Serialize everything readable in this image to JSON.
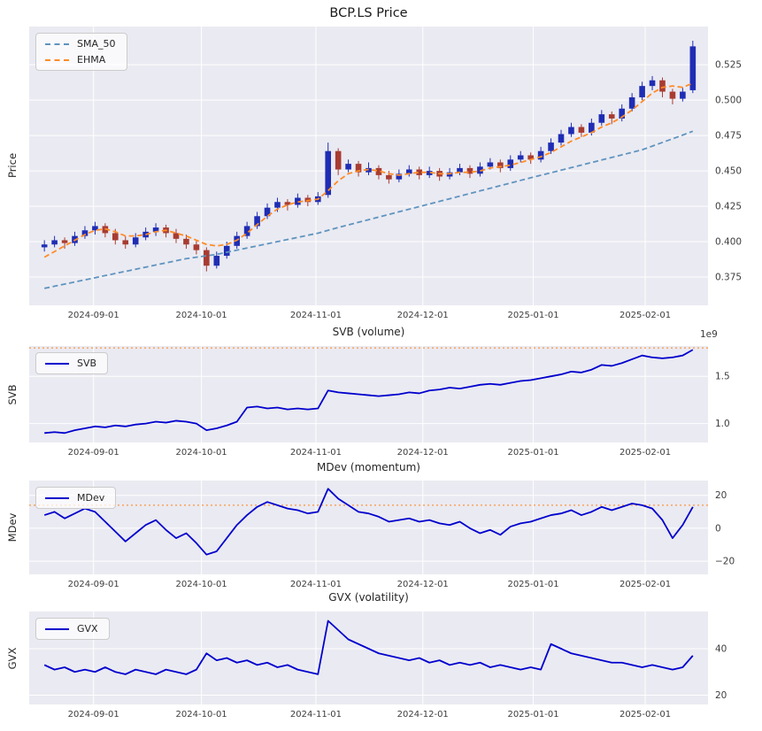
{
  "figure": {
    "title": "BCP.LS Price",
    "background": "#ffffff",
    "plot_background": "#eaeaf2",
    "grid_color": "#ffffff",
    "tick_color": "#3d3d3d"
  },
  "x_axis": {
    "tick_labels": [
      "2024-09-01",
      "2024-10-01",
      "2024-11-01",
      "2024-12-01",
      "2025-01-01",
      "2025-02-01"
    ],
    "tick_positions": [
      4.85,
      15.5,
      26.8,
      37.35,
      48.25,
      59.3
    ],
    "xlim": [
      -1.5,
      65.5
    ]
  },
  "chart_data": [
    {
      "type": "candlestick",
      "title": "BCP.LS Price",
      "ylabel": "Price",
      "ylim": [
        0.355,
        0.552
      ],
      "yticks": [
        0.375,
        0.4,
        0.425,
        0.45,
        0.475,
        0.5,
        0.525
      ],
      "ytick_labels": [
        "0.375",
        "0.400",
        "0.425",
        "0.450",
        "0.475",
        "0.500",
        "0.525"
      ],
      "up_color": "#1f2db4",
      "down_color": "#a83c32",
      "legend": [
        {
          "label": "SMA_50",
          "color": "#5f94bf",
          "dash": "dashed"
        },
        {
          "label": "EHMA",
          "color": "#ff8c26",
          "dash": "dashed"
        }
      ],
      "ohlc": [
        [
          0.396,
          0.401,
          0.393,
          0.398
        ],
        [
          0.398,
          0.404,
          0.396,
          0.401
        ],
        [
          0.401,
          0.403,
          0.395,
          0.399
        ],
        [
          0.399,
          0.407,
          0.397,
          0.404
        ],
        [
          0.404,
          0.411,
          0.402,
          0.408
        ],
        [
          0.408,
          0.414,
          0.405,
          0.411
        ],
        [
          0.411,
          0.413,
          0.403,
          0.406
        ],
        [
          0.406,
          0.409,
          0.398,
          0.401
        ],
        [
          0.401,
          0.404,
          0.395,
          0.398
        ],
        [
          0.398,
          0.406,
          0.396,
          0.403
        ],
        [
          0.403,
          0.41,
          0.401,
          0.407
        ],
        [
          0.407,
          0.413,
          0.404,
          0.41
        ],
        [
          0.41,
          0.412,
          0.403,
          0.406
        ],
        [
          0.406,
          0.409,
          0.399,
          0.402
        ],
        [
          0.402,
          0.405,
          0.395,
          0.398
        ],
        [
          0.398,
          0.401,
          0.391,
          0.394
        ],
        [
          0.394,
          0.396,
          0.379,
          0.383
        ],
        [
          0.383,
          0.393,
          0.381,
          0.39
        ],
        [
          0.39,
          0.4,
          0.388,
          0.397
        ],
        [
          0.397,
          0.407,
          0.395,
          0.404
        ],
        [
          0.404,
          0.414,
          0.402,
          0.411
        ],
        [
          0.411,
          0.421,
          0.409,
          0.418
        ],
        [
          0.418,
          0.427,
          0.416,
          0.424
        ],
        [
          0.424,
          0.431,
          0.421,
          0.428
        ],
        [
          0.428,
          0.43,
          0.422,
          0.426
        ],
        [
          0.426,
          0.434,
          0.424,
          0.431
        ],
        [
          0.431,
          0.433,
          0.425,
          0.428
        ],
        [
          0.428,
          0.435,
          0.426,
          0.432
        ],
        [
          0.433,
          0.47,
          0.431,
          0.464
        ],
        [
          0.464,
          0.466,
          0.447,
          0.451
        ],
        [
          0.451,
          0.458,
          0.449,
          0.455
        ],
        [
          0.455,
          0.457,
          0.446,
          0.449
        ],
        [
          0.449,
          0.456,
          0.447,
          0.452
        ],
        [
          0.452,
          0.454,
          0.444,
          0.447
        ],
        [
          0.447,
          0.45,
          0.441,
          0.444
        ],
        [
          0.444,
          0.451,
          0.442,
          0.448
        ],
        [
          0.448,
          0.454,
          0.446,
          0.451
        ],
        [
          0.451,
          0.453,
          0.444,
          0.447
        ],
        [
          0.447,
          0.453,
          0.445,
          0.45
        ],
        [
          0.45,
          0.452,
          0.443,
          0.446
        ],
        [
          0.446,
          0.452,
          0.444,
          0.449
        ],
        [
          0.449,
          0.455,
          0.447,
          0.452
        ],
        [
          0.452,
          0.454,
          0.445,
          0.448
        ],
        [
          0.448,
          0.456,
          0.446,
          0.453
        ],
        [
          0.453,
          0.459,
          0.451,
          0.456
        ],
        [
          0.456,
          0.458,
          0.449,
          0.452
        ],
        [
          0.452,
          0.461,
          0.45,
          0.458
        ],
        [
          0.458,
          0.464,
          0.456,
          0.461
        ],
        [
          0.461,
          0.463,
          0.455,
          0.458
        ],
        [
          0.458,
          0.467,
          0.456,
          0.464
        ],
        [
          0.464,
          0.473,
          0.462,
          0.47
        ],
        [
          0.47,
          0.479,
          0.468,
          0.476
        ],
        [
          0.476,
          0.484,
          0.474,
          0.481
        ],
        [
          0.481,
          0.483,
          0.474,
          0.477
        ],
        [
          0.477,
          0.487,
          0.475,
          0.484
        ],
        [
          0.484,
          0.493,
          0.482,
          0.49
        ],
        [
          0.49,
          0.492,
          0.483,
          0.487
        ],
        [
          0.487,
          0.497,
          0.485,
          0.494
        ],
        [
          0.494,
          0.505,
          0.492,
          0.502
        ],
        [
          0.502,
          0.513,
          0.5,
          0.51
        ],
        [
          0.51,
          0.517,
          0.507,
          0.514
        ],
        [
          0.514,
          0.516,
          0.502,
          0.506
        ],
        [
          0.506,
          0.508,
          0.497,
          0.501
        ],
        [
          0.501,
          0.509,
          0.499,
          0.506
        ],
        [
          0.507,
          0.542,
          0.505,
          0.538
        ]
      ],
      "overlays": [
        {
          "name": "SMA_50",
          "color": "#5f94bf",
          "values": [
            0.367,
            0.3685,
            0.37,
            0.3715,
            0.373,
            0.3745,
            0.376,
            0.3775,
            0.379,
            0.3805,
            0.382,
            0.3835,
            0.385,
            0.3865,
            0.388,
            0.389,
            0.39,
            0.391,
            0.3925,
            0.394,
            0.3955,
            0.397,
            0.3985,
            0.4,
            0.4015,
            0.403,
            0.4045,
            0.406,
            0.408,
            0.41,
            0.4118,
            0.4137,
            0.4155,
            0.4174,
            0.4192,
            0.4211,
            0.4229,
            0.4248,
            0.4266,
            0.4285,
            0.4303,
            0.4322,
            0.434,
            0.4359,
            0.4377,
            0.4396,
            0.4414,
            0.4433,
            0.4451,
            0.4469,
            0.4487,
            0.4505,
            0.4523,
            0.4541,
            0.4559,
            0.4577,
            0.4595,
            0.4613,
            0.4631,
            0.4649,
            0.4675,
            0.4701,
            0.4727,
            0.4753,
            0.478
          ]
        },
        {
          "name": "EHMA",
          "color": "#ff8c26",
          "values": [
            0.389,
            0.393,
            0.397,
            0.401,
            0.405,
            0.408,
            0.409,
            0.407,
            0.404,
            0.404,
            0.405,
            0.407,
            0.408,
            0.406,
            0.404,
            0.401,
            0.398,
            0.397,
            0.398,
            0.401,
            0.406,
            0.412,
            0.418,
            0.423,
            0.426,
            0.428,
            0.429,
            0.43,
            0.436,
            0.443,
            0.448,
            0.45,
            0.451,
            0.45,
            0.448,
            0.447,
            0.448,
            0.449,
            0.449,
            0.448,
            0.448,
            0.449,
            0.449,
            0.45,
            0.452,
            0.453,
            0.454,
            0.456,
            0.458,
            0.46,
            0.463,
            0.467,
            0.471,
            0.474,
            0.477,
            0.481,
            0.484,
            0.488,
            0.493,
            0.499,
            0.505,
            0.509,
            0.51,
            0.509,
            0.512
          ]
        }
      ]
    },
    {
      "type": "line",
      "title": "SVB (volume)",
      "ylabel": "SVB",
      "offset_label": "1e9",
      "ylim": [
        0.8,
        1.82
      ],
      "yticks": [
        1.0,
        1.5
      ],
      "ytick_labels": [
        "1.0",
        "1.5"
      ],
      "threshold": 1.8,
      "threshold_color": "#ff8c26",
      "line_color": "#0000cd",
      "legend": [
        {
          "label": "SVB",
          "color": "#0000cd",
          "dash": "solid"
        }
      ],
      "values": [
        0.9,
        0.91,
        0.9,
        0.93,
        0.95,
        0.97,
        0.96,
        0.98,
        0.97,
        0.99,
        1.0,
        1.02,
        1.01,
        1.03,
        1.02,
        1.0,
        0.93,
        0.95,
        0.98,
        1.02,
        1.17,
        1.18,
        1.16,
        1.17,
        1.15,
        1.16,
        1.15,
        1.16,
        1.35,
        1.33,
        1.32,
        1.31,
        1.3,
        1.29,
        1.3,
        1.31,
        1.33,
        1.32,
        1.35,
        1.36,
        1.38,
        1.37,
        1.39,
        1.41,
        1.42,
        1.41,
        1.43,
        1.45,
        1.46,
        1.48,
        1.5,
        1.52,
        1.55,
        1.54,
        1.57,
        1.62,
        1.61,
        1.64,
        1.68,
        1.72,
        1.7,
        1.69,
        1.7,
        1.72,
        1.78
      ]
    },
    {
      "type": "line",
      "title": "MDev (momentum)",
      "ylabel": "MDev",
      "ylim": [
        -28,
        29
      ],
      "yticks": [
        -20,
        0,
        20
      ],
      "ytick_labels": [
        "−20",
        "0",
        "20"
      ],
      "threshold": 14,
      "threshold_color": "#ff8c26",
      "line_color": "#0000cd",
      "legend": [
        {
          "label": "MDev",
          "color": "#0000cd",
          "dash": "solid"
        }
      ],
      "values": [
        8,
        10,
        6,
        9,
        12,
        10,
        4,
        -2,
        -8,
        -3,
        2,
        5,
        -1,
        -6,
        -3,
        -9,
        -16,
        -14,
        -6,
        2,
        8,
        13,
        16,
        14,
        12,
        11,
        9,
        10,
        24,
        18,
        14,
        10,
        9,
        7,
        4,
        5,
        6,
        4,
        5,
        3,
        2,
        4,
        0,
        -3,
        -1,
        -4,
        1,
        3,
        4,
        6,
        8,
        9,
        11,
        8,
        10,
        13,
        11,
        13,
        15,
        14,
        12,
        5,
        -6,
        2,
        13
      ]
    },
    {
      "type": "line",
      "title": "GVX (volatility)",
      "ylabel": "GVX",
      "ylim": [
        16,
        56
      ],
      "yticks": [
        20,
        40
      ],
      "ytick_labels": [
        "20",
        "40"
      ],
      "line_color": "#0000cd",
      "legend": [
        {
          "label": "GVX",
          "color": "#0000cd",
          "dash": "solid"
        }
      ],
      "values": [
        33,
        31,
        32,
        30,
        31,
        30,
        32,
        30,
        29,
        31,
        30,
        29,
        31,
        30,
        29,
        31,
        38,
        35,
        36,
        34,
        35,
        33,
        34,
        32,
        33,
        31,
        30,
        29,
        52,
        48,
        44,
        42,
        40,
        38,
        37,
        36,
        35,
        36,
        34,
        35,
        33,
        34,
        33,
        34,
        32,
        33,
        32,
        31,
        32,
        31,
        42,
        40,
        38,
        37,
        36,
        35,
        34,
        34,
        33,
        32,
        33,
        32,
        31,
        32,
        37
      ]
    }
  ]
}
